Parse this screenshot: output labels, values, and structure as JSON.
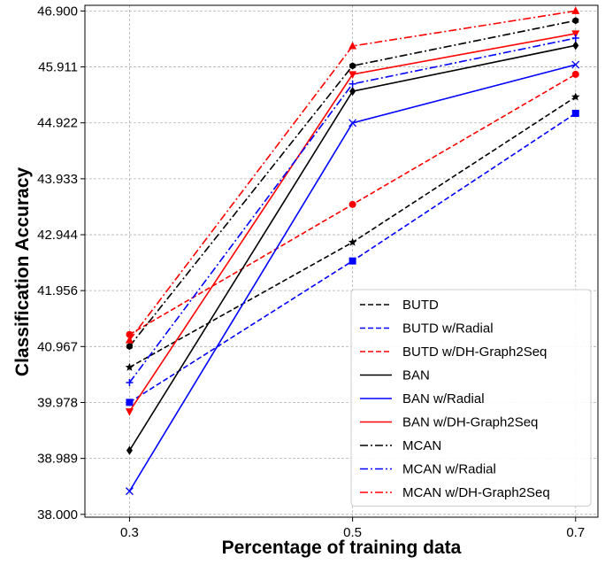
{
  "chart_data": {
    "type": "line",
    "xlabel": "Percentage of training data",
    "ylabel": "Classification Accuracy",
    "x": [
      0.3,
      0.5,
      0.7
    ],
    "x_tick_labels": [
      "0.3",
      "0.5",
      "0.7"
    ],
    "y_ticks": [
      38.0,
      38.989,
      39.978,
      40.967,
      41.956,
      42.944,
      43.933,
      44.922,
      45.911,
      46.9
    ],
    "y_tick_labels": [
      "38.000",
      "38.989",
      "39.978",
      "40.967",
      "41.956",
      "42.944",
      "43.933",
      "44.922",
      "45.911",
      "46.900"
    ],
    "ylim": [
      37.95,
      47.0
    ],
    "xlim": [
      0.26,
      0.72
    ],
    "grid": true,
    "legend_position": "lower-right",
    "series": [
      {
        "name": "BUTD",
        "values": [
          40.6,
          42.81,
          45.38
        ],
        "color": "#000000",
        "dash": "dashed",
        "marker": "star"
      },
      {
        "name": "BUTD w/Radial",
        "values": [
          39.98,
          42.48,
          45.09
        ],
        "color": "#0000ff",
        "dash": "dashed",
        "marker": "square"
      },
      {
        "name": "BUTD w/DH-Graph2Seq",
        "values": [
          41.18,
          43.48,
          45.78
        ],
        "color": "#ff0000",
        "dash": "dashed",
        "marker": "circle"
      },
      {
        "name": "BAN",
        "values": [
          39.13,
          45.48,
          46.29
        ],
        "color": "#000000",
        "dash": "solid",
        "marker": "diamond"
      },
      {
        "name": "BAN w/Radial",
        "values": [
          38.41,
          44.92,
          45.95
        ],
        "color": "#0000ff",
        "dash": "solid",
        "marker": "x"
      },
      {
        "name": "BAN w/DH-Graph2Seq",
        "values": [
          39.82,
          45.78,
          46.5
        ],
        "color": "#ff0000",
        "dash": "solid",
        "marker": "triangle-down"
      },
      {
        "name": "MCAN",
        "values": [
          40.97,
          45.93,
          46.73
        ],
        "color": "#000000",
        "dash": "dashdot",
        "marker": "hexagon"
      },
      {
        "name": "MCAN w/Radial",
        "values": [
          40.33,
          45.61,
          46.42
        ],
        "color": "#0000ff",
        "dash": "dashdot",
        "marker": "plus"
      },
      {
        "name": "MCAN w/DH-Graph2Seq",
        "values": [
          41.08,
          46.28,
          46.9
        ],
        "color": "#ff0000",
        "dash": "dashdot",
        "marker": "triangle-up"
      }
    ]
  }
}
